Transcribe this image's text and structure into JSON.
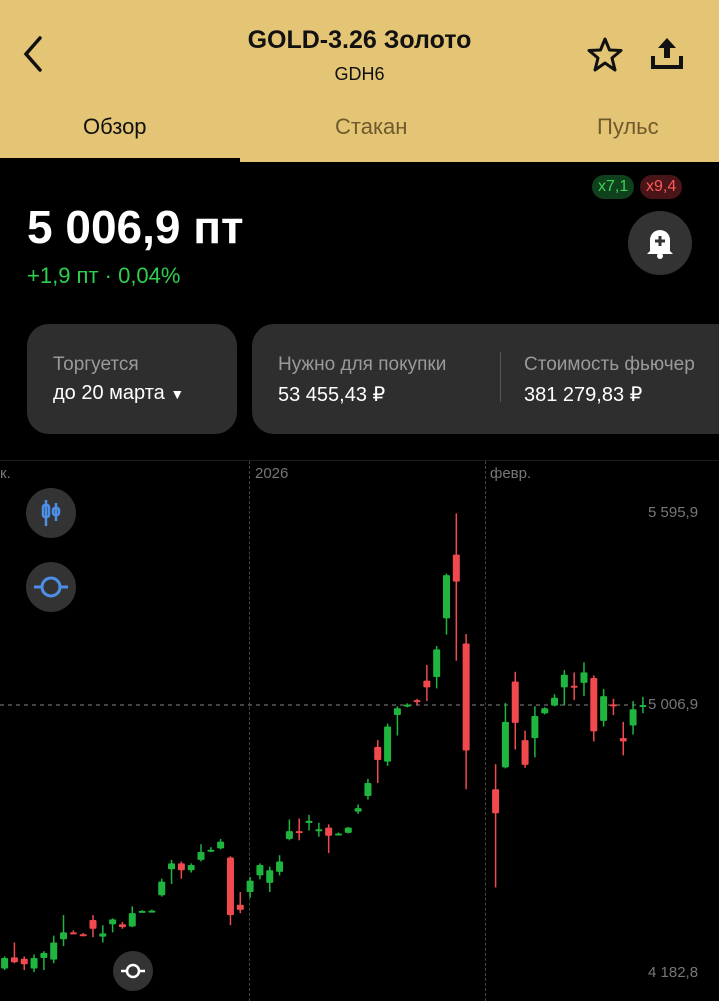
{
  "header": {
    "title": "GOLD-3.26 Золото",
    "ticker": "GDH6",
    "back_icon": "chevron-left-icon",
    "favorite_icon": "star-icon",
    "share_icon": "share-icon"
  },
  "tabs": [
    {
      "label": "Обзор",
      "active": true
    },
    {
      "label": "Стакан",
      "active": false
    },
    {
      "label": "Пульс",
      "active": false
    }
  ],
  "quote": {
    "price": "5 006,9 пт",
    "change": "+1,9 пт · 0,04%",
    "leverage_long": "x7,1",
    "leverage_short": "x9,4",
    "alert_icon": "bell-plus-icon"
  },
  "cards": {
    "traded_label": "Торгуется",
    "traded_value": "до 20 марта",
    "margin_label": "Нужно для покупки",
    "margin_value": "53 455,43 ₽",
    "cost_label": "Стоимость фьючер",
    "cost_value": "381 279,83 ₽"
  },
  "colors": {
    "accent": "#e4c475",
    "up": "#1fb53f",
    "down": "#f04a4f",
    "change": "#2fcf4e"
  },
  "chart_tools": {
    "candle_icon": "candlestick-icon",
    "crosshair_icon": "crosshair-icon",
    "reset_icon": "target-icon"
  },
  "chart_data": {
    "type": "candlestick",
    "x_labels": [
      "к.",
      "2026",
      "февр."
    ],
    "y_labels": [
      "5 595,9",
      "5 006,9",
      "4 182,8"
    ],
    "current_price": 5006.9,
    "ylim": [
      4182.8,
      5595.9
    ],
    "candles_ohlc": [
      [
        4197,
        4234,
        4192,
        4229
      ],
      [
        4231,
        4277,
        4213,
        4216
      ],
      [
        4227,
        4234,
        4192,
        4210
      ],
      [
        4197,
        4240,
        4186,
        4229
      ],
      [
        4229,
        4250,
        4192,
        4245
      ],
      [
        4224,
        4298,
        4213,
        4277
      ],
      [
        4287,
        4361,
        4266,
        4308
      ],
      [
        4308,
        4314,
        4303,
        4306
      ],
      [
        4302,
        4306,
        4296,
        4300
      ],
      [
        4346,
        4361,
        4293,
        4319
      ],
      [
        4295,
        4330,
        4277,
        4305
      ],
      [
        4333,
        4351,
        4308,
        4348
      ],
      [
        4333,
        4340,
        4319,
        4324
      ],
      [
        4326,
        4388,
        4324,
        4367
      ],
      [
        4372,
        4376,
        4370,
        4374
      ],
      [
        4373,
        4378,
        4371,
        4375
      ],
      [
        4422,
        4473,
        4418,
        4464
      ],
      [
        4502,
        4531,
        4457,
        4520
      ],
      [
        4520,
        4526,
        4473,
        4499
      ],
      [
        4499,
        4520,
        4492,
        4515
      ],
      [
        4531,
        4579,
        4526,
        4555
      ],
      [
        4560,
        4570,
        4555,
        4562
      ],
      [
        4566,
        4595,
        4563,
        4587
      ],
      [
        4538,
        4542,
        4330,
        4361
      ],
      [
        4393,
        4432,
        4367,
        4377
      ],
      [
        4432,
        4478,
        4414,
        4467
      ],
      [
        4483,
        4520,
        4471,
        4515
      ],
      [
        4460,
        4510,
        4432,
        4499
      ],
      [
        4494,
        4545,
        4483,
        4526
      ],
      [
        4595,
        4655,
        4591,
        4619
      ],
      [
        4619,
        4658,
        4591,
        4617
      ],
      [
        4644,
        4669,
        4621,
        4651
      ],
      [
        4623,
        4645,
        4602,
        4625
      ],
      [
        4630,
        4640,
        4552,
        4605
      ],
      [
        4610,
        4615,
        4607,
        4612
      ],
      [
        4614,
        4632,
        4612,
        4630
      ],
      [
        4679,
        4701,
        4672,
        4690
      ],
      [
        4727,
        4780,
        4716,
        4767
      ],
      [
        4878,
        4899,
        4767,
        4838
      ],
      [
        4833,
        4950,
        4820,
        4941
      ],
      [
        4976,
        5003,
        4913,
        4997
      ],
      [
        5004,
        5012,
        5000,
        5008
      ],
      [
        5022,
        5026,
        5008,
        5020
      ],
      [
        5082,
        5130,
        5019,
        5061
      ],
      [
        5093,
        5188,
        5058,
        5178
      ],
      [
        5273,
        5411,
        5223,
        5406
      ],
      [
        5469,
        5596,
        5143,
        5386
      ],
      [
        5196,
        5225,
        4748,
        4867
      ],
      null,
      null,
      [
        4748,
        4825,
        4446,
        4674
      ],
      [
        4815,
        5013,
        4812,
        4955
      ],
      [
        5079,
        5109,
        4870,
        4952
      ],
      [
        4899,
        4928,
        4814,
        4823
      ],
      [
        4905,
        5003,
        4846,
        4973
      ],
      [
        4981,
        5000,
        4978,
        4997
      ],
      [
        5005,
        5040,
        5003,
        5029
      ],
      [
        5061,
        5114,
        5005,
        5100
      ],
      [
        5066,
        5107,
        5022,
        5063
      ],
      [
        5075,
        5138,
        5034,
        5107
      ],
      [
        5090,
        5098,
        4895,
        4926
      ],
      [
        4958,
        5056,
        4941,
        5034
      ],
      [
        5009,
        5026,
        4976,
        5005
      ],
      [
        4905,
        4955,
        4852,
        4895
      ],
      [
        4944,
        5019,
        4916,
        4994
      ],
      [
        5005,
        5032,
        4982,
        5007
      ]
    ]
  }
}
